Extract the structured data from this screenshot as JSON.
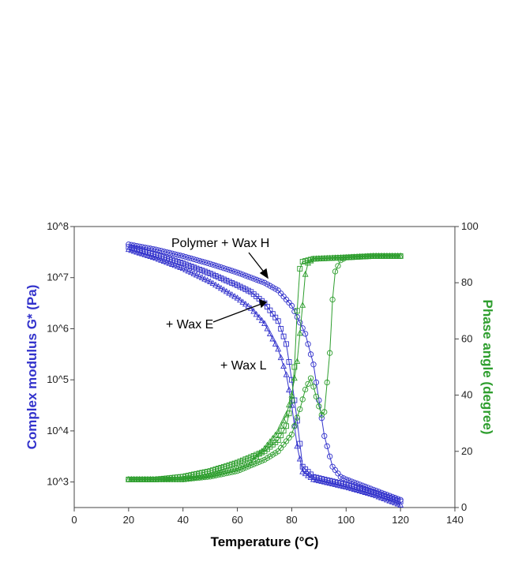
{
  "chart_data": {
    "type": "scatter",
    "colors": {
      "modulus": "#3333cc",
      "phase": "#2e9e2e",
      "axis": "#444444"
    },
    "x": {
      "label": "Temperature (°C)",
      "range": [
        0,
        140
      ],
      "ticks": [
        "0",
        "20",
        "40",
        "60",
        "80",
        "100",
        "120",
        "140"
      ]
    },
    "y_left": {
      "label": "Complex modulus G* (Pa)",
      "scale": "log",
      "range_decades": [
        2.5,
        8
      ],
      "ticks": [
        {
          "base": "10",
          "exp": "8",
          "value": 8
        },
        {
          "base": "10",
          "exp": "7",
          "value": 7
        },
        {
          "base": "10",
          "exp": "6",
          "value": 6
        },
        {
          "base": "10",
          "exp": "5",
          "value": 5
        },
        {
          "base": "10",
          "exp": "4",
          "value": 4
        },
        {
          "base": "10",
          "exp": "3",
          "value": 3
        }
      ]
    },
    "y_right": {
      "label": "Phase angle (degree)",
      "range": [
        0,
        100
      ],
      "ticks": [
        "0",
        "20",
        "40",
        "60",
        "80",
        "100"
      ]
    },
    "annotations": [
      {
        "text": "Polymer + Wax H",
        "series": "Wax H"
      },
      {
        "text": "+ Wax E",
        "series": "Wax E"
      },
      {
        "text": "+ Wax L",
        "series": "Wax L"
      }
    ],
    "series": [
      {
        "name": "Wax H",
        "axis": "left",
        "marker": "circle",
        "points": [
          [
            20,
            7.65
          ],
          [
            30,
            7.55
          ],
          [
            40,
            7.42
          ],
          [
            50,
            7.27
          ],
          [
            60,
            7.1
          ],
          [
            70,
            6.9
          ],
          [
            75,
            6.75
          ],
          [
            80,
            6.45
          ],
          [
            85,
            5.9
          ],
          [
            88,
            5.3
          ],
          [
            90,
            4.6
          ],
          [
            92,
            3.9
          ],
          [
            95,
            3.3
          ],
          [
            98,
            3.1
          ],
          [
            100,
            3.05
          ],
          [
            110,
            2.85
          ],
          [
            120,
            2.65
          ]
        ]
      },
      {
        "name": "Wax E",
        "axis": "left",
        "marker": "square",
        "points": [
          [
            20,
            7.6
          ],
          [
            30,
            7.45
          ],
          [
            40,
            7.28
          ],
          [
            50,
            7.08
          ],
          [
            60,
            6.85
          ],
          [
            65,
            6.72
          ],
          [
            70,
            6.5
          ],
          [
            75,
            6.15
          ],
          [
            78,
            5.7
          ],
          [
            80,
            5.0
          ],
          [
            82,
            4.2
          ],
          [
            84,
            3.3
          ],
          [
            88,
            3.1
          ],
          [
            100,
            2.95
          ],
          [
            110,
            2.8
          ],
          [
            120,
            2.62
          ]
        ]
      },
      {
        "name": "Wax L",
        "axis": "left",
        "marker": "triangle",
        "points": [
          [
            20,
            7.55
          ],
          [
            30,
            7.38
          ],
          [
            40,
            7.18
          ],
          [
            50,
            6.92
          ],
          [
            60,
            6.6
          ],
          [
            65,
            6.4
          ],
          [
            70,
            6.1
          ],
          [
            75,
            5.6
          ],
          [
            78,
            5.1
          ],
          [
            80,
            4.5
          ],
          [
            82,
            3.7
          ],
          [
            84,
            3.2
          ],
          [
            88,
            3.05
          ],
          [
            100,
            2.9
          ],
          [
            110,
            2.75
          ],
          [
            120,
            2.55
          ]
        ]
      },
      {
        "name": "Wax H",
        "axis": "right",
        "marker": "circle",
        "points": [
          [
            20,
            10
          ],
          [
            30,
            10
          ],
          [
            40,
            10
          ],
          [
            50,
            11
          ],
          [
            60,
            13
          ],
          [
            65,
            15
          ],
          [
            70,
            17
          ],
          [
            75,
            20
          ],
          [
            80,
            26
          ],
          [
            83,
            35
          ],
          [
            85,
            42
          ],
          [
            87,
            46
          ],
          [
            88,
            43
          ],
          [
            90,
            36
          ],
          [
            91,
            33
          ],
          [
            92,
            34
          ],
          [
            94,
            55
          ],
          [
            95,
            74
          ],
          [
            96,
            84
          ],
          [
            98,
            88
          ],
          [
            100,
            89
          ],
          [
            110,
            89.5
          ],
          [
            120,
            89.5
          ]
        ]
      },
      {
        "name": "Wax E",
        "axis": "right",
        "marker": "square",
        "points": [
          [
            20,
            10
          ],
          [
            30,
            10
          ],
          [
            40,
            11
          ],
          [
            50,
            13
          ],
          [
            60,
            16
          ],
          [
            70,
            20
          ],
          [
            75,
            24
          ],
          [
            78,
            29
          ],
          [
            80,
            38
          ],
          [
            81,
            50
          ],
          [
            82,
            70
          ],
          [
            83,
            85
          ],
          [
            84,
            87.5
          ],
          [
            88,
            88.5
          ],
          [
            100,
            89
          ],
          [
            110,
            89.5
          ],
          [
            120,
            89.5
          ]
        ]
      },
      {
        "name": "Wax L",
        "axis": "right",
        "marker": "triangle",
        "points": [
          [
            20,
            10
          ],
          [
            30,
            10
          ],
          [
            40,
            10
          ],
          [
            50,
            11.5
          ],
          [
            60,
            14
          ],
          [
            65,
            16
          ],
          [
            70,
            21
          ],
          [
            75,
            27
          ],
          [
            78,
            33
          ],
          [
            80,
            40
          ],
          [
            82,
            52
          ],
          [
            84,
            72
          ],
          [
            85,
            83
          ],
          [
            86,
            87
          ],
          [
            88,
            88.5
          ],
          [
            100,
            89
          ],
          [
            110,
            89.5
          ],
          [
            120,
            89.5
          ]
        ]
      }
    ]
  }
}
